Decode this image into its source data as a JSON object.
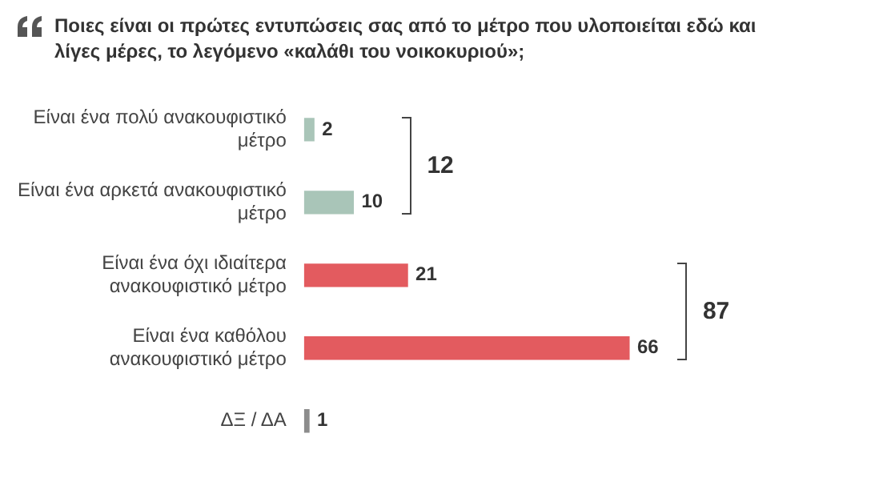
{
  "chart_data": {
    "type": "bar",
    "orientation": "horizontal",
    "title": "Ποιες είναι οι πρώτες εντυπώσεις σας από το μέτρο που υλοποιείται εδώ και λίγες μέρες, το λεγόμενο «καλάθι του νοικοκυριού»;",
    "categories": [
      "Είναι ένα πολύ ανακουφιστικό μέτρο",
      "Είναι ένα αρκετά ανακουφιστικό μέτρο",
      "Είναι ένα όχι ιδιαίτερα ανακουφιστικό μέτρο",
      "Είναι ένα καθόλου ανακουφιστικό μέτρο",
      "ΔΞ / ΔΑ"
    ],
    "values": [
      2,
      10,
      21,
      66,
      1
    ],
    "colors": [
      "#a9c5b8",
      "#a9c5b8",
      "#e35b5f",
      "#e35b5f",
      "#8c8c8c"
    ],
    "data_labels": true,
    "annotations": [
      "12",
      "87"
    ]
  }
}
